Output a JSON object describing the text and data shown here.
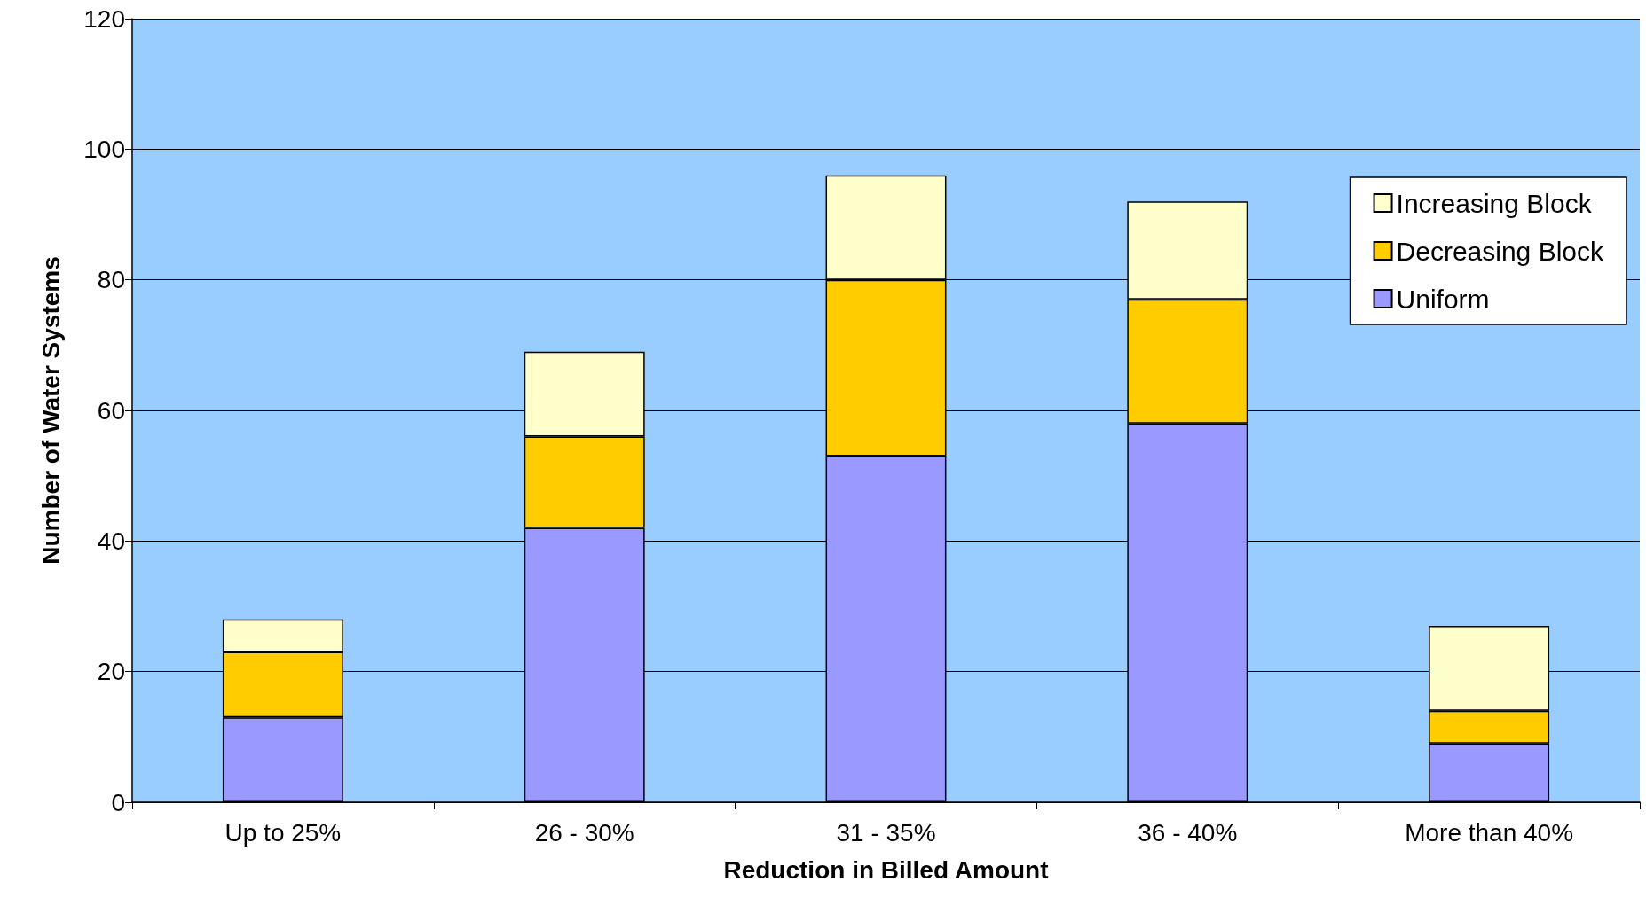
{
  "chart_data": {
    "type": "bar",
    "stacked": true,
    "xlabel": "Reduction in Billed Amount",
    "ylabel": "Number of Water Systems",
    "categories": [
      "Up to 25%",
      "26 - 30%",
      "31 - 35%",
      "36 - 40%",
      "More than 40%"
    ],
    "series": [
      {
        "name": "Uniform",
        "color": "#9999ff",
        "values": [
          13,
          42,
          53,
          58,
          9
        ]
      },
      {
        "name": "Decreasing Block",
        "color": "#ffcc00",
        "values": [
          10,
          14,
          27,
          19,
          5
        ]
      },
      {
        "name": "Increasing Block",
        "color": "#ffffcc",
        "values": [
          5,
          13,
          16,
          15,
          13
        ]
      }
    ],
    "ylim": [
      0,
      120
    ],
    "yticks": [
      0,
      20,
      40,
      60,
      80,
      100,
      120
    ],
    "grid": "y",
    "legend": "top right"
  }
}
